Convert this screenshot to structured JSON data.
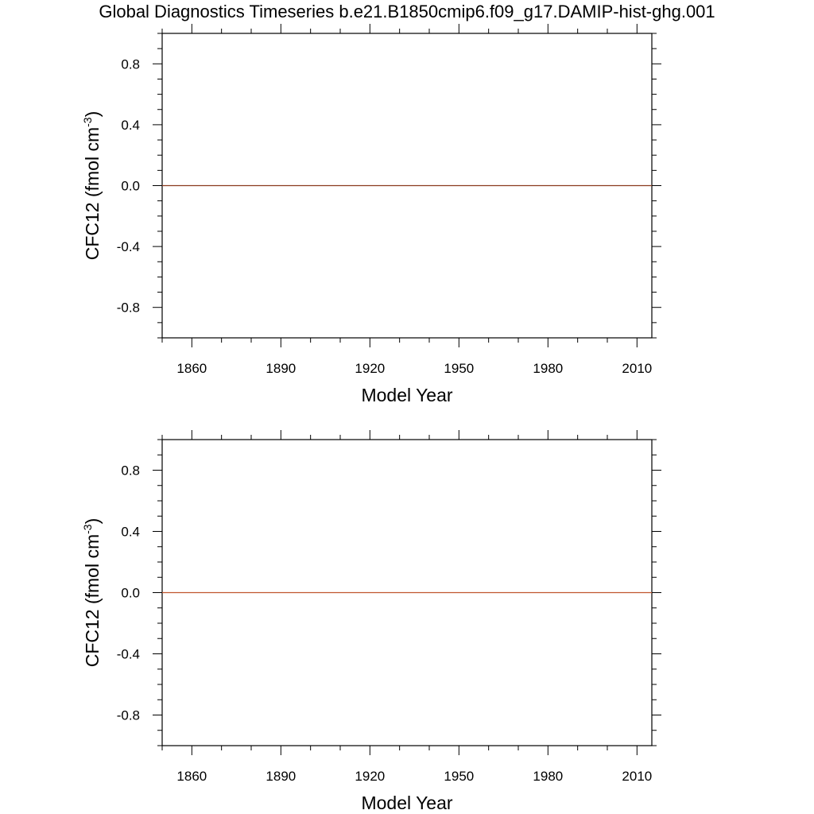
{
  "title": "Global Diagnostics Timeseries b.e21.B1850cmip6.f09_g17.DAMIP-hist-ghg.001",
  "chart_data": [
    {
      "type": "line",
      "panel": "top",
      "xlabel": "Model Year",
      "ylabel": "CFC12 (fmol cm",
      "ylabel_sup": "-3",
      "ylabel_close": ")",
      "xlim": [
        1850,
        2015
      ],
      "ylim": [
        -1.0,
        1.0
      ],
      "x_ticks": [
        1860,
        1890,
        1920,
        1950,
        1980,
        2010
      ],
      "x_tick_labels": [
        "1860",
        "1890",
        "1920",
        "1950",
        "1980",
        "2010"
      ],
      "y_ticks": [
        0.8,
        0.4,
        0.0,
        -0.4,
        -0.8
      ],
      "y_tick_labels": [
        "0.8",
        "0.4",
        "0.0",
        "-0.4",
        "-0.8"
      ],
      "series": [
        {
          "color": "#8b3a1f",
          "x": [
            1850,
            2015
          ],
          "y": [
            0.0,
            0.0
          ]
        }
      ],
      "grid": false
    },
    {
      "type": "line",
      "panel": "bottom",
      "xlabel": "Model Year",
      "ylabel": "CFC12 (fmol cm",
      "ylabel_sup": "-3",
      "ylabel_close": ")",
      "xlim": [
        1850,
        2015
      ],
      "ylim": [
        -1.0,
        1.0
      ],
      "x_ticks": [
        1860,
        1890,
        1920,
        1950,
        1980,
        2010
      ],
      "x_tick_labels": [
        "1860",
        "1890",
        "1920",
        "1950",
        "1980",
        "2010"
      ],
      "y_ticks": [
        0.8,
        0.4,
        0.0,
        -0.4,
        -0.8
      ],
      "y_tick_labels": [
        "0.8",
        "0.4",
        "0.0",
        "-0.4",
        "-0.8"
      ],
      "series": [
        {
          "color": "#c0552f",
          "x": [
            1850,
            2015
          ],
          "y": [
            0.0,
            0.0
          ]
        }
      ],
      "grid": false
    }
  ]
}
